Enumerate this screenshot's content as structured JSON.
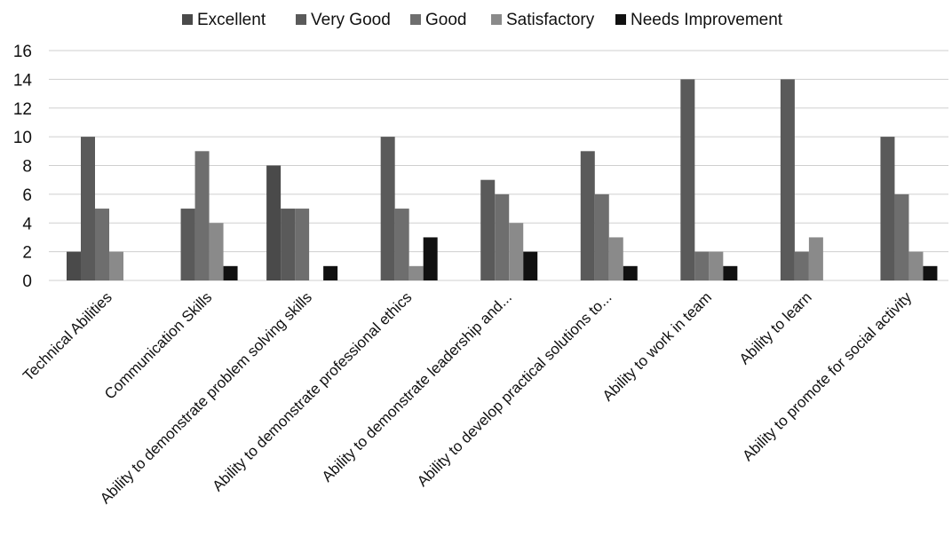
{
  "chart_data": {
    "type": "bar",
    "title": "",
    "xlabel": "",
    "ylabel": "",
    "ylim": [
      0,
      16
    ],
    "yticks": [
      0,
      2,
      4,
      6,
      8,
      10,
      12,
      14,
      16
    ],
    "grid": true,
    "legend_position": "top",
    "categories": [
      "Technical Abilities",
      "Communication Skills",
      "Ability to demonstrate problem solving skills",
      "Ability to demonstrate professional ethics",
      "Ability to demonstrate leadership and...",
      "Ability to develop practical solutions to...",
      "Ability to work in team",
      "Ability to learn",
      "Ability to promote for social activity"
    ],
    "series": [
      {
        "name": "Excellent",
        "color": "#4a4a4a",
        "values": [
          2,
          0,
          8,
          0,
          0,
          0,
          0,
          0,
          0
        ]
      },
      {
        "name": "Very Good",
        "color": "#5a5a5a",
        "values": [
          10,
          5,
          5,
          10,
          7,
          9,
          14,
          14,
          10
        ]
      },
      {
        "name": "Good",
        "color": "#6e6e6e",
        "values": [
          5,
          9,
          5,
          5,
          6,
          6,
          2,
          2,
          6
        ]
      },
      {
        "name": "Satisfactory",
        "color": "#8a8a8a",
        "values": [
          2,
          4,
          0,
          1,
          4,
          3,
          2,
          3,
          2
        ]
      },
      {
        "name": "Needs Improvement",
        "color": "#111111",
        "values": [
          0,
          1,
          1,
          3,
          2,
          1,
          1,
          0,
          1
        ]
      }
    ]
  }
}
